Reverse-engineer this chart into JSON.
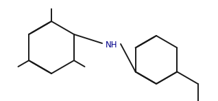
{
  "background_color": "#ffffff",
  "bond_color": "#1a1a1a",
  "nh_color": "#00008b",
  "line_width": 1.4,
  "dbo": 0.018,
  "NH_fontsize": 8.5
}
